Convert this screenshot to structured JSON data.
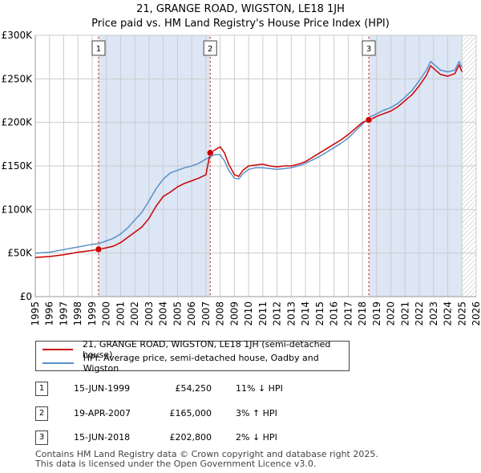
{
  "title_line1": "21, GRANGE ROAD, WIGSTON, LE18 1JH",
  "title_line2": "Price paid vs. HM Land Registry's House Price Index (HPI)",
  "chart_data": {
    "type": "line",
    "x_range": [
      1995,
      2026
    ],
    "ylim": [
      0,
      300000
    ],
    "y_ticks": [
      {
        "value": 0,
        "label": "£0"
      },
      {
        "value": 50000,
        "label": "£50K"
      },
      {
        "value": 100000,
        "label": "£100K"
      },
      {
        "value": 150000,
        "label": "£150K"
      },
      {
        "value": 200000,
        "label": "£200K"
      },
      {
        "value": 250000,
        "label": "£250K"
      },
      {
        "value": 300000,
        "label": "£300K"
      }
    ],
    "x_ticks": [
      "1995",
      "1996",
      "1997",
      "1998",
      "1999",
      "2000",
      "2001",
      "2002",
      "2003",
      "2004",
      "2005",
      "2006",
      "2007",
      "2008",
      "2009",
      "2010",
      "2011",
      "2012",
      "2013",
      "2014",
      "2015",
      "2016",
      "2017",
      "2018",
      "2019",
      "2020",
      "2021",
      "2022",
      "2023",
      "2024",
      "2025",
      "2026"
    ],
    "shaded_periods": [
      [
        1999.45,
        2007.3
      ],
      [
        2018.45,
        2025.0
      ]
    ],
    "hatched_from": 2025.0,
    "colors": {
      "property": "#cc0000",
      "hpi": "#5b8fc7",
      "shade": "#dce6f5",
      "grid": "#cccccc",
      "marker_line": "#cc0000"
    },
    "series": [
      {
        "name": "21, GRANGE ROAD, WIGSTON, LE18 1JH (semi-detached house)",
        "color": "#cc0000",
        "points": [
          [
            1995.0,
            45000
          ],
          [
            1996.0,
            46000
          ],
          [
            1997.0,
            48000
          ],
          [
            1998.0,
            51000
          ],
          [
            1999.0,
            53000
          ],
          [
            1999.45,
            54250
          ],
          [
            2000.0,
            56000
          ],
          [
            2000.5,
            58000
          ],
          [
            2001.0,
            62000
          ],
          [
            2001.5,
            68000
          ],
          [
            2002.0,
            74000
          ],
          [
            2002.5,
            80000
          ],
          [
            2003.0,
            90000
          ],
          [
            2003.5,
            104000
          ],
          [
            2004.0,
            115000
          ],
          [
            2004.5,
            120000
          ],
          [
            2005.0,
            126000
          ],
          [
            2005.5,
            130000
          ],
          [
            2006.0,
            133000
          ],
          [
            2006.5,
            136000
          ],
          [
            2007.0,
            140000
          ],
          [
            2007.3,
            165000
          ],
          [
            2007.6,
            168000
          ],
          [
            2008.0,
            172000
          ],
          [
            2008.3,
            165000
          ],
          [
            2008.6,
            152000
          ],
          [
            2009.0,
            140000
          ],
          [
            2009.3,
            138000
          ],
          [
            2009.6,
            145000
          ],
          [
            2010.0,
            150000
          ],
          [
            2010.5,
            151000
          ],
          [
            2011.0,
            152000
          ],
          [
            2011.5,
            150000
          ],
          [
            2012.0,
            149000
          ],
          [
            2012.5,
            150000
          ],
          [
            2013.0,
            150000
          ],
          [
            2013.5,
            152000
          ],
          [
            2014.0,
            155000
          ],
          [
            2014.5,
            160000
          ],
          [
            2015.0,
            165000
          ],
          [
            2015.5,
            170000
          ],
          [
            2016.0,
            175000
          ],
          [
            2016.5,
            180000
          ],
          [
            2017.0,
            186000
          ],
          [
            2017.5,
            193000
          ],
          [
            2018.0,
            200000
          ],
          [
            2018.45,
            202800
          ],
          [
            2018.8,
            205000
          ],
          [
            2019.0,
            207000
          ],
          [
            2019.5,
            210000
          ],
          [
            2020.0,
            213000
          ],
          [
            2020.5,
            218000
          ],
          [
            2021.0,
            225000
          ],
          [
            2021.5,
            232000
          ],
          [
            2022.0,
            242000
          ],
          [
            2022.5,
            254000
          ],
          [
            2022.8,
            265000
          ],
          [
            2023.0,
            262000
          ],
          [
            2023.5,
            255000
          ],
          [
            2024.0,
            253000
          ],
          [
            2024.5,
            256000
          ],
          [
            2024.8,
            266000
          ],
          [
            2025.0,
            258000
          ]
        ]
      },
      {
        "name": "HPI: Average price, semi-detached house, Oadby and Wigston",
        "color": "#5b8fc7",
        "points": [
          [
            1995.0,
            50000
          ],
          [
            1996.0,
            51000
          ],
          [
            1997.0,
            54000
          ],
          [
            1998.0,
            57000
          ],
          [
            1999.0,
            60000
          ],
          [
            1999.5,
            61000
          ],
          [
            2000.0,
            64000
          ],
          [
            2000.5,
            67000
          ],
          [
            2001.0,
            72000
          ],
          [
            2001.5,
            79000
          ],
          [
            2002.0,
            88000
          ],
          [
            2002.5,
            97000
          ],
          [
            2003.0,
            110000
          ],
          [
            2003.5,
            124000
          ],
          [
            2004.0,
            135000
          ],
          [
            2004.5,
            142000
          ],
          [
            2005.0,
            145000
          ],
          [
            2005.5,
            148000
          ],
          [
            2006.0,
            150000
          ],
          [
            2006.5,
            153000
          ],
          [
            2007.0,
            158000
          ],
          [
            2007.3,
            160000
          ],
          [
            2007.6,
            163000
          ],
          [
            2008.0,
            163000
          ],
          [
            2008.3,
            156000
          ],
          [
            2008.6,
            145000
          ],
          [
            2009.0,
            136000
          ],
          [
            2009.3,
            135000
          ],
          [
            2009.6,
            141000
          ],
          [
            2010.0,
            146000
          ],
          [
            2010.5,
            148000
          ],
          [
            2011.0,
            148000
          ],
          [
            2011.5,
            147000
          ],
          [
            2012.0,
            146000
          ],
          [
            2012.5,
            147000
          ],
          [
            2013.0,
            148000
          ],
          [
            2013.5,
            150000
          ],
          [
            2014.0,
            153000
          ],
          [
            2014.5,
            157000
          ],
          [
            2015.0,
            161000
          ],
          [
            2015.5,
            166000
          ],
          [
            2016.0,
            171000
          ],
          [
            2016.5,
            176000
          ],
          [
            2017.0,
            182000
          ],
          [
            2017.5,
            190000
          ],
          [
            2018.0,
            198000
          ],
          [
            2018.45,
            206000
          ],
          [
            2018.8,
            208000
          ],
          [
            2019.0,
            210000
          ],
          [
            2019.5,
            214000
          ],
          [
            2020.0,
            217000
          ],
          [
            2020.5,
            222000
          ],
          [
            2021.0,
            229000
          ],
          [
            2021.5,
            237000
          ],
          [
            2022.0,
            248000
          ],
          [
            2022.5,
            260000
          ],
          [
            2022.8,
            270000
          ],
          [
            2023.0,
            267000
          ],
          [
            2023.5,
            260000
          ],
          [
            2024.0,
            258000
          ],
          [
            2024.5,
            260000
          ],
          [
            2024.8,
            270000
          ],
          [
            2025.0,
            263000
          ]
        ]
      }
    ],
    "sale_markers": [
      {
        "label": "1",
        "x": 1999.45,
        "y": 54250
      },
      {
        "label": "2",
        "x": 2007.3,
        "y": 165000
      },
      {
        "label": "3",
        "x": 2018.45,
        "y": 202800
      }
    ]
  },
  "legend": {
    "property_label": "21, GRANGE ROAD, WIGSTON, LE18 1JH (semi-detached house)",
    "hpi_label": "HPI: Average price, semi-detached house, Oadby and Wigston"
  },
  "transactions": [
    {
      "num": "1",
      "date": "15-JUN-1999",
      "price": "£54,250",
      "hpi": "11% ↓ HPI"
    },
    {
      "num": "2",
      "date": "19-APR-2007",
      "price": "£165,000",
      "hpi": "3% ↑ HPI"
    },
    {
      "num": "3",
      "date": "15-JUN-2018",
      "price": "£202,800",
      "hpi": "2% ↓ HPI"
    }
  ],
  "footer": {
    "line1": "Contains HM Land Registry data © Crown copyright and database right 2025.",
    "line2": "This data is licensed under the Open Government Licence v3.0."
  }
}
